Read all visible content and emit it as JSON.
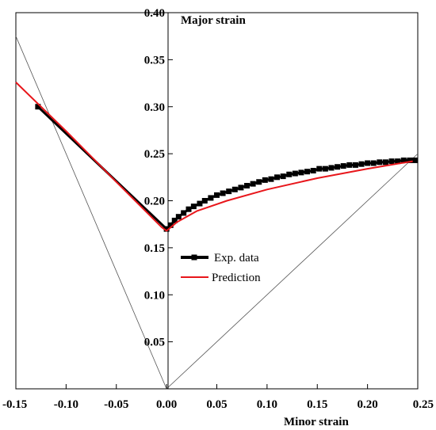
{
  "chart_data": {
    "type": "line",
    "xlabel": "Minor strain",
    "ylabel": "Major strain",
    "xlim": [
      -0.15,
      0.25
    ],
    "ylim": [
      0.0,
      0.4
    ],
    "x_ticks": [
      "-0.15",
      "-0.10",
      "-0.05",
      "0.00",
      "0.05",
      "0.10",
      "0.15",
      "0.20",
      "0.25"
    ],
    "y_ticks": [
      "0.05",
      "0.10",
      "0.15",
      "0.20",
      "0.25",
      "0.30",
      "0.35",
      "0.40"
    ],
    "grid": false,
    "legend_position": "center",
    "reference_lines": [
      {
        "x": [
          -0.15,
          0.0
        ],
        "y": [
          0.375,
          0.0
        ]
      },
      {
        "x": [
          0.0,
          0.25
        ],
        "y": [
          0.0,
          0.25
        ]
      }
    ],
    "series": [
      {
        "name": "Exp. data",
        "color": "#000000",
        "marker": "square",
        "x": [
          -0.128,
          0.0,
          0.004,
          0.008,
          0.012,
          0.017,
          0.022,
          0.027,
          0.033,
          0.038,
          0.044,
          0.05,
          0.056,
          0.062,
          0.068,
          0.074,
          0.08,
          0.086,
          0.092,
          0.098,
          0.104,
          0.11,
          0.116,
          0.122,
          0.128,
          0.134,
          0.14,
          0.146,
          0.152,
          0.158,
          0.164,
          0.17,
          0.176,
          0.182,
          0.188,
          0.194,
          0.2,
          0.206,
          0.212,
          0.218,
          0.224,
          0.23,
          0.236,
          0.242,
          0.247
        ],
        "y": [
          0.3,
          0.17,
          0.174,
          0.179,
          0.183,
          0.187,
          0.191,
          0.194,
          0.197,
          0.2,
          0.203,
          0.206,
          0.208,
          0.21,
          0.212,
          0.214,
          0.216,
          0.218,
          0.22,
          0.222,
          0.223,
          0.225,
          0.226,
          0.228,
          0.229,
          0.23,
          0.231,
          0.232,
          0.234,
          0.234,
          0.235,
          0.236,
          0.237,
          0.238,
          0.238,
          0.239,
          0.24,
          0.24,
          0.241,
          0.241,
          0.242,
          0.242,
          0.243,
          0.243,
          0.243
        ]
      },
      {
        "name": "Prediction",
        "color": "#e8161b",
        "marker": "none",
        "x": [
          -0.15,
          -0.1,
          -0.05,
          -0.02,
          -0.005,
          0.0,
          0.01,
          0.03,
          0.06,
          0.1,
          0.15,
          0.2,
          0.245
        ],
        "y": [
          0.326,
          0.274,
          0.22,
          0.188,
          0.172,
          0.168,
          0.177,
          0.189,
          0.2,
          0.212,
          0.224,
          0.234,
          0.242
        ]
      }
    ]
  }
}
